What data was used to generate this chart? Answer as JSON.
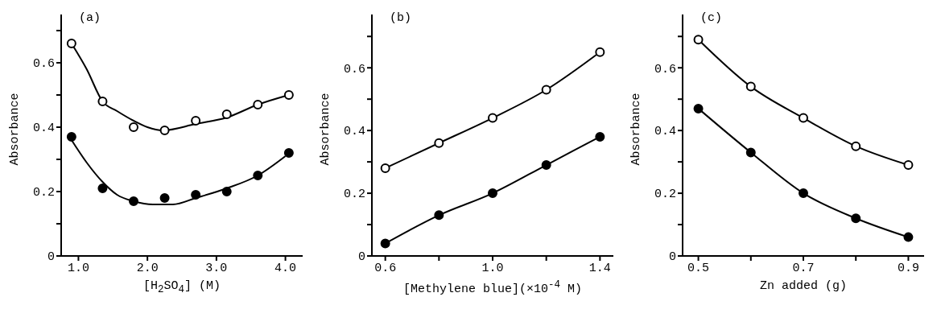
{
  "chart_data": [
    {
      "type": "scatter",
      "title": "(a)",
      "xlabel": "[H$_{2}$SO$_{4}$]  (M)",
      "ylabel": "Absorbance",
      "marker": "circle",
      "xlim": [
        0.75,
        4.25
      ],
      "xticks": [
        {
          "value": 1,
          "label": "1.0"
        },
        {
          "value": 2,
          "label": "2.0"
        },
        {
          "value": 3,
          "label": "3.0"
        },
        {
          "value": 4,
          "label": "4.0"
        }
      ],
      "ylim": [
        0,
        0.75
      ],
      "yticks": [
        0,
        {
          "value": 0.1,
          "label": null
        },
        0.2,
        {
          "value": 0.3,
          "label": null
        },
        0.4,
        {
          "value": 0.5,
          "label": null
        },
        0.6,
        {
          "value": 0.7,
          "label": null
        }
      ],
      "series": [
        {
          "x": [
            0.9,
            1.35,
            1.8,
            2.25,
            2.7,
            3.15,
            3.6,
            4.05
          ],
          "values": [
            0.66,
            0.48,
            0.4,
            0.39,
            0.42,
            0.44,
            0.47,
            0.5
          ]
        },
        {
          "color": "#000000",
          "x": [
            0.9,
            1.35,
            1.8,
            2.25,
            2.7,
            3.15,
            3.6,
            4.05
          ],
          "values": [
            0.37,
            0.21,
            0.17,
            0.18,
            0.19,
            0.2,
            0.25,
            0.32
          ]
        },
        {
          "type": "line",
          "marker": "none",
          "color": "#000000",
          "x": [
            0.9,
            1.12,
            1.35,
            1.56,
            1.8,
            2.0,
            2.22,
            2.7,
            3.15,
            3.6,
            4.05
          ],
          "values": [
            0.66,
            0.58,
            0.48,
            0.45,
            0.42,
            0.4,
            0.39,
            0.41,
            0.43,
            0.47,
            0.5
          ]
        },
        {
          "type": "line",
          "marker": "none",
          "color": "#000000",
          "x": [
            0.9,
            1.12,
            1.35,
            1.56,
            1.8,
            2.08,
            2.37,
            2.7,
            3.15,
            3.6,
            4.0
          ],
          "values": [
            0.36,
            0.29,
            0.23,
            0.19,
            0.17,
            0.16,
            0.16,
            0.18,
            0.21,
            0.25,
            0.31
          ]
        }
      ]
    },
    {
      "type": "line",
      "title": "(b)",
      "xlabel": "[Methylene blue](×10$^{-4}$ M)",
      "ylabel": "Absorbance",
      "marker": "circle",
      "xlim": [
        0.55,
        1.45
      ],
      "xticks": [
        0.6,
        {
          "value": 0.8,
          "label": null
        },
        {
          "value": 1,
          "label": "1.0"
        },
        {
          "value": 1.2,
          "label": null
        },
        1.4
      ],
      "ylim": [
        0,
        0.77
      ],
      "yticks": [
        0,
        {
          "value": 0.1,
          "label": null
        },
        0.2,
        {
          "value": 0.3,
          "label": null
        },
        0.4,
        {
          "value": 0.5,
          "label": null
        },
        0.6,
        {
          "value": 0.7,
          "label": null
        }
      ],
      "series": [
        {
          "x": [
            0.6,
            0.8,
            1.0,
            1.2,
            1.4
          ],
          "values": [
            0.28,
            0.36,
            0.44,
            0.53,
            0.65
          ]
        },
        {
          "color": "#000000",
          "x": [
            0.6,
            0.8,
            1.0,
            1.2,
            1.4
          ],
          "values": [
            0.04,
            0.13,
            0.2,
            0.29,
            0.38
          ]
        }
      ]
    },
    {
      "type": "line",
      "title": "(c)",
      "xlabel": "Zn added (g)",
      "ylabel": "Absorbance",
      "marker": "circle",
      "xlim": [
        0.47,
        0.93
      ],
      "xticks": [
        0.5,
        {
          "value": 0.6,
          "label": null
        },
        0.7,
        {
          "value": 0.8,
          "label": null
        },
        0.9
      ],
      "ylim": [
        0,
        0.77
      ],
      "yticks": [
        0,
        {
          "value": 0.1,
          "label": null
        },
        0.2,
        {
          "value": 0.3,
          "label": null
        },
        0.4,
        {
          "value": 0.5,
          "label": null
        },
        0.6,
        {
          "value": 0.7,
          "label": null
        }
      ],
      "series": [
        {
          "x": [
            0.5,
            0.6,
            0.7,
            0.8,
            0.9
          ],
          "values": [
            0.69,
            0.54,
            0.44,
            0.35,
            0.29
          ]
        },
        {
          "color": "#000000",
          "x": [
            0.5,
            0.6,
            0.7,
            0.8,
            0.9
          ],
          "values": [
            0.47,
            0.33,
            0.2,
            0.12,
            0.06
          ]
        }
      ]
    }
  ]
}
